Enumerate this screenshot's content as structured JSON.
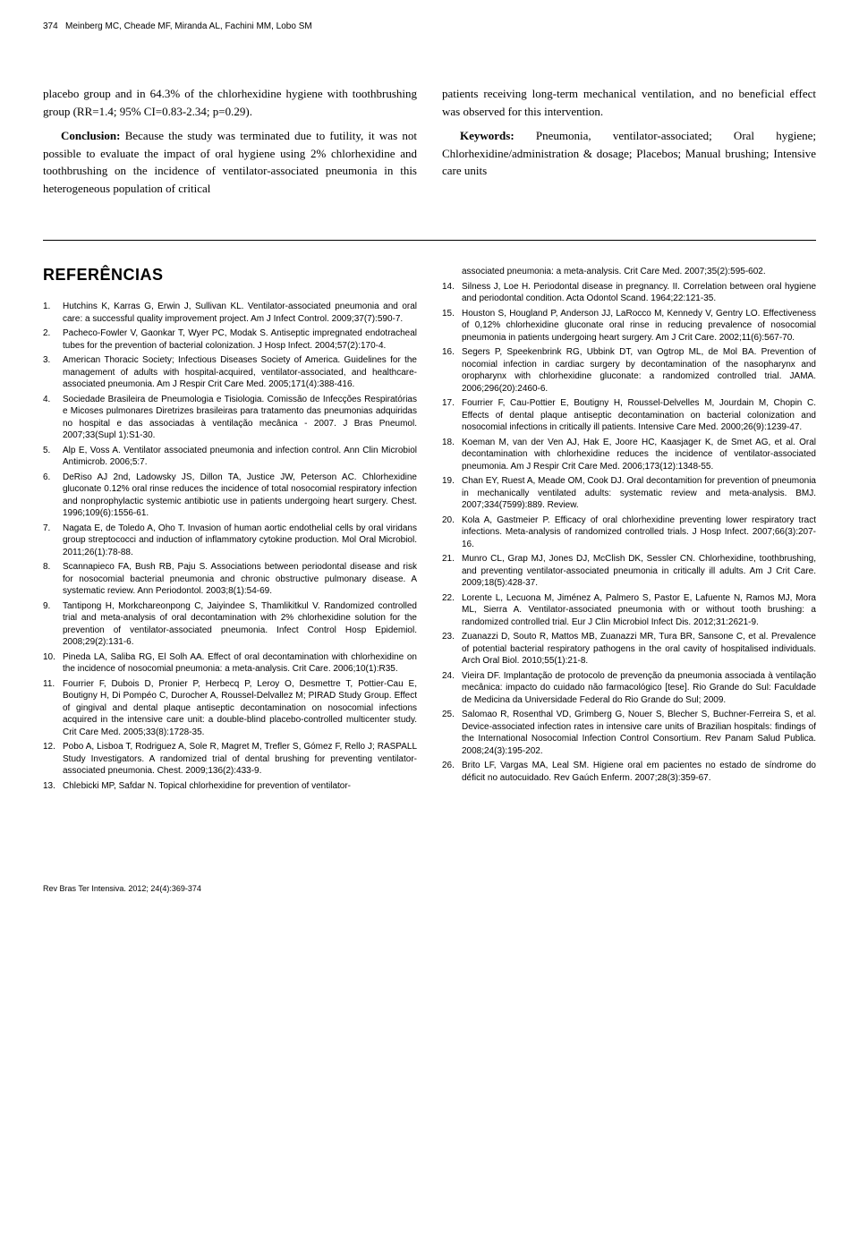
{
  "header": {
    "page_num": "374",
    "authors": "Meinberg MC, Cheade MF, Miranda AL, Fachini MM, Lobo SM"
  },
  "body": {
    "left": [
      {
        "cls": "",
        "html": "placebo group and in 64.3% of the chlorhexidine hygiene with toothbrushing group (RR=1.4; 95% CI=0.83-2.34; p=0.29)."
      },
      {
        "cls": "indent",
        "html": "<span class=\"bold\">Conclusion:</span> Because the study was terminated due to futility, it was not possible to evaluate the impact of oral hygiene using 2% chlorhexidine and toothbrushing on the incidence of ventilator-associated pneumonia in this heterogeneous population of critical"
      }
    ],
    "right": [
      {
        "cls": "",
        "html": "patients receiving long-term mechanical ventilation, and no beneficial effect was observed for this intervention."
      },
      {
        "cls": "indent",
        "html": "<span class=\"bold\">Keywords:</span> Pneumonia, ventilator-associated; Oral hygiene; Chlorhexidine/administration & dosage; Placebos; Manual brushing; Intensive care units"
      }
    ]
  },
  "refs_heading": "REFERÊNCIAS",
  "refs_left": [
    {
      "n": "1.",
      "t": "Hutchins K, Karras G, Erwin J, Sullivan KL. Ventilator-associated pneumonia and oral care: a successful quality improvement project. Am J Infect Control. 2009;37(7):590-7."
    },
    {
      "n": "2.",
      "t": "Pacheco-Fowler V, Gaonkar T, Wyer PC, Modak S. Antiseptic impregnated endotracheal tubes for the prevention of bacterial colonization. J Hosp Infect. 2004;57(2):170-4."
    },
    {
      "n": "3.",
      "t": "American Thoracic Society; Infectious Diseases Society of America. Guidelines for the management of adults with hospital-acquired, ventilator-associated, and healthcare-associated pneumonia. Am J Respir Crit Care Med. 2005;171(4):388-416."
    },
    {
      "n": "4.",
      "t": "Sociedade Brasileira de Pneumologia e Tisiologia. Comissão de Infecções Respiratórias e Micoses pulmonares Diretrizes brasileiras para tratamento das pneumonias adquiridas no hospital e das associadas à ventilação mecânica - 2007. J Bras Pneumol. 2007;33(Supl 1):S1-30."
    },
    {
      "n": "5.",
      "t": "Alp E, Voss A. Ventilator associated pneumonia and infection control. Ann Clin Microbiol Antimicrob. 2006;5:7."
    },
    {
      "n": "6.",
      "t": "DeRiso AJ 2nd, Ladowsky JS, Dillon TA, Justice JW, Peterson AC. Chlorhexidine gluconate 0.12% oral rinse reduces the incidence of total nosocomial respiratory infection and nonprophylactic systemic antibiotic use in patients undergoing heart surgery. Chest. 1996;109(6):1556-61."
    },
    {
      "n": "7.",
      "t": "Nagata E, de Toledo A, Oho T. Invasion of human aortic endothelial cells by oral viridans group streptococci and induction of inflammatory cytokine production. Mol Oral Microbiol. 2011;26(1):78-88."
    },
    {
      "n": "8.",
      "t": "Scannapieco FA, Bush RB, Paju S. Associations between periodontal disease and risk for nosocomial bacterial pneumonia and chronic obstructive pulmonary disease. A systematic review. Ann Periodontol. 2003;8(1):54-69."
    },
    {
      "n": "9.",
      "t": "Tantipong H, Morkchareonpong C, Jaiyindee S, Thamlikitkul V. Randomized controlled trial and meta-analysis of oral decontamination with 2% chlorhexidine solution for the prevention of ventilator-associated pneumonia. Infect Control Hosp Epidemiol. 2008;29(2):131-6."
    },
    {
      "n": "10.",
      "t": "Pineda LA, Saliba RG, El Solh AA. Effect of oral decontamination with chlorhexidine on the incidence of nosocomial pneumonia: a meta-analysis. Crit Care. 2006;10(1):R35."
    },
    {
      "n": "11.",
      "t": "Fourrier F, Dubois D, Pronier P, Herbecq P, Leroy O, Desmettre T, Pottier-Cau E, Boutigny H, Di Pompéo C, Durocher A, Roussel-Delvallez M; PIRAD Study Group. Effect of gingival and dental plaque antiseptic decontamination on nosocomial infections acquired in the intensive care unit: a double-blind placebo-controlled multicenter study. Crit Care Med. 2005;33(8):1728-35."
    },
    {
      "n": "12.",
      "t": "Pobo A, Lisboa T, Rodriguez A, Sole R, Magret M, Trefler S, Gómez F, Rello J; RASPALL Study Investigators. A randomized trial of dental brushing for preventing ventilator-associated pneumonia. Chest. 2009;136(2):433-9."
    },
    {
      "n": "13.",
      "t": "Chlebicki MP, Safdar N. Topical chlorhexidine for prevention of ventilator-"
    }
  ],
  "refs_right": [
    {
      "n": "",
      "t": "associated pneumonia: a meta-analysis. Crit Care Med. 2007;35(2):595-602."
    },
    {
      "n": "14.",
      "t": "Silness J, Loe H. Periodontal disease in pregnancy. II. Correlation between oral hygiene and periodontal condition. Acta Odontol Scand. 1964;22:121-35."
    },
    {
      "n": "15.",
      "t": "Houston S, Hougland P, Anderson JJ, LaRocco M, Kennedy V, Gentry LO. Effectiveness of 0,12% chlorhexidine gluconate oral rinse in reducing prevalence of nosocomial pneumonia in patients undergoing heart surgery. Am J Crit Care. 2002;11(6):567-70."
    },
    {
      "n": "16.",
      "t": "Segers P, Speekenbrink RG, Ubbink DT, van Ogtrop ML, de Mol BA. Prevention of nocomial infection in cardiac surgery by decontamination of the nasopharynx and oropharynx with chlorhexidine gluconate: a randomized controlled trial. JAMA. 2006;296(20):2460-6."
    },
    {
      "n": "17.",
      "t": "Fourrier F, Cau-Pottier E, Boutigny H, Roussel-Delvelles M, Jourdain M, Chopin C. Effects of dental plaque antiseptic decontamination on bacterial colonization and nosocomial infections in critically ill patients. Intensive Care Med. 2000;26(9):1239-47."
    },
    {
      "n": "18.",
      "t": "Koeman M, van der Ven AJ, Hak E, Joore HC, Kaasjager K, de Smet AG, et al. Oral decontamination with chlorhexidine reduces the incidence of ventilator-associated pneumonia. Am J Respir Crit Care Med. 2006;173(12):1348-55."
    },
    {
      "n": "19.",
      "t": "Chan EY, Ruest A, Meade OM, Cook DJ. Oral decontamition for prevention of pneumonia in mechanically ventilated adults: systematic review and meta-analysis. BMJ. 2007;334(7599):889. Review."
    },
    {
      "n": "20.",
      "t": "Kola A, Gastmeier P. Efficacy of oral chlorhexidine preventing lower respiratory tract infections. Meta-analysis of randomized controlled trials. J Hosp Infect. 2007;66(3):207-16."
    },
    {
      "n": "21.",
      "t": "Munro CL, Grap MJ, Jones DJ, McClish DK, Sessler CN. Chlorhexidine, toothbrushing, and preventing ventilator-associated pneumonia in critically ill adults. Am J Crit Care. 2009;18(5):428-37."
    },
    {
      "n": "22.",
      "t": "Lorente L, Lecuona M, Jiménez A, Palmero S, Pastor E, Lafuente N, Ramos MJ, Mora ML, Sierra A. Ventilator-associated pneumonia with or without tooth brushing: a randomized controlled trial. Eur J Clin Microbiol Infect Dis. 2012;31:2621-9."
    },
    {
      "n": "23.",
      "t": "Zuanazzi D, Souto R, Mattos MB, Zuanazzi MR, Tura BR, Sansone C, et al. Prevalence of potential bacterial respiratory pathogens in the oral cavity of hospitalised individuals. Arch Oral Biol. 2010;55(1):21-8."
    },
    {
      "n": "24.",
      "t": "Vieira DF. Implantação de protocolo de prevenção da pneumonia associada à ventilação mecânica: impacto do cuidado não farmacológico [tese]. Rio Grande do Sul: Faculdade de Medicina da Universidade Federal do Rio Grande do Sul; 2009."
    },
    {
      "n": "25.",
      "t": "Salomao R, Rosenthal VD, Grimberg G, Nouer S, Blecher S, Buchner-Ferreira S, et al. Device-associated infection rates in intensive care units of Brazilian hospitals: findings of the International Nosocomial Infection Control Consortium. Rev Panam Salud Publica. 2008;24(3):195-202."
    },
    {
      "n": "26.",
      "t": "Brito LF, Vargas MA, Leal SM. Higiene oral em pacientes no estado de síndrome do déficit no autocuidado. Rev Gaúch Enferm. 2007;28(3):359-67."
    }
  ],
  "footer": "Rev Bras Ter Intensiva. 2012; 24(4):369-374"
}
